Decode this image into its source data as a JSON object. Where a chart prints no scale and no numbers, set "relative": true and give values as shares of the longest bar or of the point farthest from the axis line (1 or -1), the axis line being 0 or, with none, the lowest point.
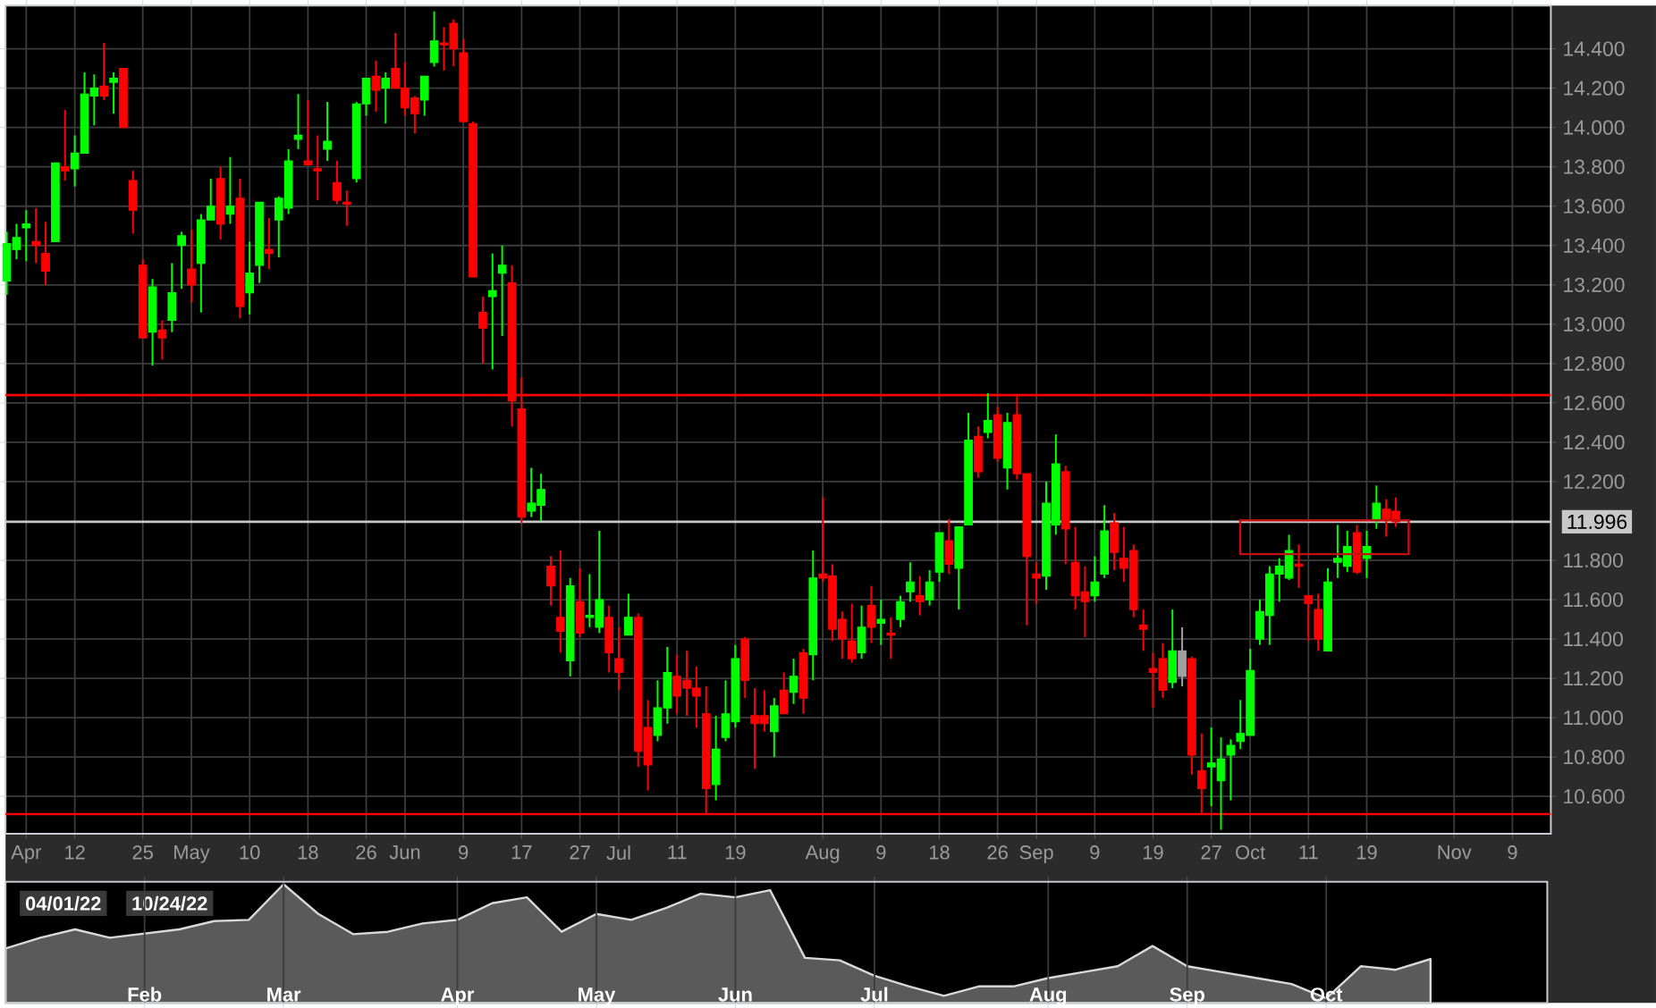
{
  "chart_data": [
    {
      "type": "candlestick",
      "categories": [
        null,
        null,
        "Apr",
        null,
        null,
        null,
        null,
        "12",
        null,
        null,
        null,
        null,
        null,
        null,
        "25",
        null,
        null,
        null,
        null,
        "May",
        null,
        null,
        null,
        null,
        null,
        "10",
        null,
        null,
        null,
        null,
        null,
        "18",
        null,
        null,
        null,
        null,
        null,
        "26",
        null,
        null,
        null,
        "Jun",
        null,
        null,
        null,
        null,
        null,
        "9",
        null,
        null,
        null,
        null,
        null,
        "17",
        null,
        null,
        null,
        null,
        null,
        "27",
        null,
        null,
        null,
        "Jul",
        null,
        null,
        null,
        null,
        null,
        "11",
        null,
        null,
        null,
        null,
        null,
        "19",
        null,
        null,
        null,
        null,
        null,
        null,
        null,
        null,
        "Aug",
        null,
        null,
        null,
        null,
        null,
        "9",
        null,
        null,
        null,
        null,
        null,
        "18",
        null,
        null,
        null,
        null,
        null,
        "26",
        null,
        null,
        null,
        "Sep",
        null,
        null,
        null,
        null,
        null,
        "9",
        null,
        null,
        null,
        null,
        null,
        "19",
        null,
        null,
        null,
        null,
        null,
        "27",
        null,
        null,
        null,
        "Oct",
        null,
        null,
        null,
        null,
        null,
        "11",
        null,
        null,
        null,
        null,
        null,
        "19",
        null,
        null,
        null,
        null,
        null,
        null,
        null,
        null,
        "Nov",
        null,
        null,
        null,
        null,
        null,
        "9",
        null,
        null,
        null
      ],
      "ohlc": [
        [
          13.22,
          13.47,
          13.15,
          13.41
        ],
        [
          13.38,
          13.51,
          13.33,
          13.44
        ],
        [
          13.49,
          13.58,
          13.32,
          13.51
        ],
        [
          13.42,
          13.59,
          13.31,
          13.4
        ],
        [
          13.36,
          13.52,
          13.2,
          13.27
        ],
        [
          13.42,
          13.82,
          13.42,
          13.82
        ],
        [
          13.8,
          14.09,
          13.73,
          13.78
        ],
        [
          13.79,
          13.96,
          13.7,
          13.87
        ],
        [
          13.87,
          14.28,
          13.87,
          14.17
        ],
        [
          14.16,
          14.27,
          14.01,
          14.2
        ],
        [
          14.21,
          14.43,
          14.14,
          14.16
        ],
        [
          14.23,
          14.28,
          14.07,
          14.25
        ],
        [
          14.3,
          14.3,
          14.0,
          14.0
        ],
        [
          13.73,
          13.78,
          13.46,
          13.58
        ],
        [
          13.3,
          13.33,
          12.93,
          12.93
        ],
        [
          12.96,
          13.23,
          12.79,
          13.19
        ],
        [
          12.97,
          13.02,
          12.82,
          12.93
        ],
        [
          13.02,
          13.31,
          12.96,
          13.16
        ],
        [
          13.4,
          13.47,
          13.18,
          13.45
        ],
        [
          13.28,
          13.48,
          13.11,
          13.2
        ],
        [
          13.31,
          13.56,
          13.06,
          13.53
        ],
        [
          13.53,
          13.74,
          13.53,
          13.6
        ],
        [
          13.74,
          13.8,
          13.43,
          13.51
        ],
        [
          13.56,
          13.85,
          13.51,
          13.6
        ],
        [
          13.64,
          13.74,
          13.03,
          13.09
        ],
        [
          13.16,
          13.42,
          13.05,
          13.26
        ],
        [
          13.3,
          13.62,
          13.21,
          13.62
        ],
        [
          13.38,
          13.54,
          13.28,
          13.36
        ],
        [
          13.53,
          13.65,
          13.34,
          13.64
        ],
        [
          13.59,
          13.89,
          13.56,
          13.83
        ],
        [
          13.94,
          14.17,
          13.89,
          13.96
        ],
        [
          13.83,
          14.14,
          13.81,
          13.81
        ],
        [
          13.79,
          13.96,
          13.63,
          13.78
        ],
        [
          13.89,
          14.13,
          13.83,
          13.93
        ],
        [
          13.72,
          13.83,
          13.61,
          13.63
        ],
        [
          13.62,
          13.68,
          13.5,
          13.61
        ],
        [
          13.74,
          14.13,
          13.72,
          14.12
        ],
        [
          14.12,
          14.25,
          14.06,
          14.25
        ],
        [
          14.26,
          14.34,
          14.08,
          14.19
        ],
        [
          14.2,
          14.28,
          14.02,
          14.25
        ],
        [
          14.3,
          14.48,
          14.2,
          14.2
        ],
        [
          14.2,
          14.33,
          14.06,
          14.1
        ],
        [
          14.15,
          14.16,
          13.97,
          14.07
        ],
        [
          14.14,
          14.26,
          14.06,
          14.26
        ],
        [
          14.33,
          14.59,
          14.31,
          14.44
        ],
        [
          14.43,
          14.51,
          14.29,
          14.42
        ],
        [
          14.53,
          14.55,
          14.31,
          14.4
        ],
        [
          14.38,
          14.45,
          14.03,
          14.03
        ],
        [
          14.02,
          14.03,
          13.24,
          13.24
        ],
        [
          13.06,
          13.14,
          12.8,
          12.98
        ],
        [
          13.14,
          13.36,
          12.77,
          13.17
        ],
        [
          13.26,
          13.4,
          12.94,
          13.3
        ],
        [
          13.21,
          13.3,
          12.48,
          12.61
        ],
        [
          12.57,
          12.73,
          11.99,
          12.02
        ],
        [
          12.05,
          12.27,
          12.02,
          12.09
        ],
        [
          12.08,
          12.24,
          12.0,
          12.16
        ],
        [
          11.77,
          11.82,
          11.57,
          11.67
        ],
        [
          11.51,
          11.85,
          11.33,
          11.44
        ],
        [
          11.29,
          11.71,
          11.21,
          11.67
        ],
        [
          11.59,
          11.76,
          11.41,
          11.43
        ],
        [
          11.51,
          11.73,
          11.46,
          11.52
        ],
        [
          11.46,
          11.95,
          11.43,
          11.6
        ],
        [
          11.51,
          11.57,
          11.23,
          11.33
        ],
        [
          11.3,
          11.46,
          11.14,
          11.23
        ],
        [
          11.42,
          11.63,
          11.42,
          11.51
        ],
        [
          11.51,
          11.53,
          10.75,
          10.83
        ],
        [
          10.95,
          11.09,
          10.63,
          10.76
        ],
        [
          10.91,
          11.19,
          10.88,
          11.05
        ],
        [
          11.05,
          11.36,
          10.97,
          11.23
        ],
        [
          11.21,
          11.32,
          11.02,
          11.11
        ],
        [
          11.19,
          11.34,
          11.01,
          11.15
        ],
        [
          11.15,
          11.26,
          10.95,
          11.11
        ],
        [
          11.02,
          11.16,
          10.51,
          10.64
        ],
        [
          10.66,
          11.01,
          10.58,
          10.84
        ],
        [
          10.9,
          11.19,
          10.88,
          11.02
        ],
        [
          10.98,
          11.37,
          10.95,
          11.3
        ],
        [
          11.4,
          11.41,
          11.1,
          11.19
        ],
        [
          11.01,
          11.15,
          10.74,
          10.97
        ],
        [
          11.01,
          11.14,
          10.93,
          10.97
        ],
        [
          10.93,
          11.1,
          10.8,
          11.06
        ],
        [
          11.14,
          11.23,
          11.02,
          11.02
        ],
        [
          11.13,
          11.3,
          11.07,
          11.21
        ],
        [
          11.33,
          11.35,
          11.02,
          11.1
        ],
        [
          11.32,
          11.85,
          11.19,
          11.71
        ],
        [
          11.73,
          12.12,
          11.69,
          11.71
        ],
        [
          11.72,
          11.78,
          11.39,
          11.45
        ],
        [
          11.5,
          11.54,
          11.3,
          11.4
        ],
        [
          11.39,
          11.58,
          11.28,
          11.3
        ],
        [
          11.33,
          11.57,
          11.3,
          11.46
        ],
        [
          11.57,
          11.67,
          11.38,
          11.46
        ],
        [
          11.48,
          11.6,
          11.37,
          11.5
        ],
        [
          11.43,
          11.51,
          11.3,
          11.42
        ],
        [
          11.5,
          11.62,
          11.46,
          11.59
        ],
        [
          11.64,
          11.79,
          11.59,
          11.69
        ],
        [
          11.62,
          11.72,
          11.52,
          11.59
        ],
        [
          11.6,
          11.75,
          11.57,
          11.69
        ],
        [
          11.74,
          11.94,
          11.69,
          11.94
        ],
        [
          11.9,
          12.01,
          11.73,
          11.78
        ],
        [
          11.76,
          11.97,
          11.55,
          11.97
        ],
        [
          11.98,
          12.55,
          11.98,
          12.41
        ],
        [
          12.43,
          12.48,
          12.22,
          12.25
        ],
        [
          12.45,
          12.65,
          12.42,
          12.51
        ],
        [
          12.54,
          12.58,
          12.3,
          12.32
        ],
        [
          12.27,
          12.55,
          12.16,
          12.5
        ],
        [
          12.54,
          12.64,
          12.21,
          12.24
        ],
        [
          12.24,
          12.24,
          11.47,
          11.82
        ],
        [
          11.73,
          11.79,
          11.58,
          11.71
        ],
        [
          11.72,
          12.2,
          11.65,
          12.09
        ],
        [
          11.98,
          12.44,
          11.93,
          12.29
        ],
        [
          12.25,
          12.28,
          11.78,
          11.96
        ],
        [
          11.79,
          11.97,
          11.55,
          11.62
        ],
        [
          11.64,
          11.77,
          11.41,
          11.59
        ],
        [
          11.62,
          11.82,
          11.59,
          11.69
        ],
        [
          11.73,
          12.08,
          11.71,
          11.95
        ],
        [
          11.99,
          12.04,
          11.75,
          11.84
        ],
        [
          11.81,
          11.97,
          11.69,
          11.76
        ],
        [
          11.85,
          11.88,
          11.51,
          11.55
        ],
        [
          11.47,
          11.55,
          11.34,
          11.45
        ],
        [
          11.25,
          11.33,
          11.05,
          11.23
        ],
        [
          11.3,
          11.38,
          11.1,
          11.14
        ],
        [
          11.18,
          11.55,
          11.15,
          11.34
        ],
        [
          11.21,
          11.46,
          11.16,
          11.34
        ],
        [
          11.3,
          11.31,
          10.71,
          10.81
        ],
        [
          10.73,
          10.92,
          10.51,
          10.64
        ],
        [
          10.75,
          10.95,
          10.55,
          10.77
        ],
        [
          10.68,
          10.9,
          10.43,
          10.79
        ],
        [
          10.81,
          10.89,
          10.58,
          10.86
        ],
        [
          10.88,
          11.09,
          10.84,
          10.92
        ],
        [
          10.91,
          11.35,
          10.91,
          11.24
        ],
        [
          11.4,
          11.6,
          11.37,
          11.54
        ],
        [
          11.52,
          11.77,
          11.37,
          11.73
        ],
        [
          11.73,
          11.81,
          11.59,
          11.77
        ],
        [
          11.71,
          11.93,
          11.7,
          11.85
        ],
        [
          11.78,
          11.88,
          11.66,
          11.77
        ],
        [
          11.62,
          11.62,
          11.39,
          11.58
        ],
        [
          11.55,
          11.63,
          11.34,
          11.4
        ],
        [
          11.34,
          11.76,
          11.34,
          11.69
        ],
        [
          11.79,
          11.98,
          11.71,
          11.81
        ],
        [
          11.77,
          11.95,
          11.74,
          11.87
        ],
        [
          11.94,
          11.98,
          11.73,
          11.74
        ],
        [
          11.81,
          11.95,
          11.71,
          11.87
        ],
        [
          12.01,
          12.18,
          11.96,
          12.09
        ],
        [
          12.06,
          12.11,
          11.92,
          12.01
        ],
        [
          12.05,
          12.12,
          11.97,
          11.996
        ],
        null,
        null,
        null,
        null,
        null,
        null,
        null,
        null,
        null,
        null,
        null,
        null,
        null,
        null,
        null
      ],
      "colors": [
        "#00ff00",
        "#00ff00",
        "#00ff00",
        "#ff0000",
        "#ff0000",
        "#00ff00",
        "#ff0000",
        "#00ff00",
        "#00ff00",
        "#00ff00",
        "#ff0000",
        "#00ff00",
        "#ff0000",
        "#ff0000",
        "#ff0000",
        "#00ff00",
        "#ff0000",
        "#00ff00",
        "#00ff00",
        "#ff0000",
        "#00ff00",
        "#00ff00",
        "#ff0000",
        "#00ff00",
        "#ff0000",
        "#00ff00",
        "#00ff00",
        "#ff0000",
        "#00ff00",
        "#00ff00",
        "#00ff00",
        "#ff0000",
        "#ff0000",
        "#00ff00",
        "#ff0000",
        "#ff0000",
        "#00ff00",
        "#00ff00",
        "#ff0000",
        "#00ff00",
        "#ff0000",
        "#ff0000",
        "#ff0000",
        "#00ff00",
        "#00ff00",
        "#ff0000",
        "#ff0000",
        "#ff0000",
        "#ff0000",
        "#ff0000",
        "#00ff00",
        "#00ff00",
        "#ff0000",
        "#ff0000",
        "#00ff00",
        "#00ff00",
        "#ff0000",
        "#ff0000",
        "#00ff00",
        "#ff0000",
        "#00ff00",
        "#00ff00",
        "#ff0000",
        "#ff0000",
        "#00ff00",
        "#ff0000",
        "#ff0000",
        "#00ff00",
        "#00ff00",
        "#ff0000",
        "#ff0000",
        "#ff0000",
        "#ff0000",
        "#00ff00",
        "#00ff00",
        "#00ff00",
        "#ff0000",
        "#ff0000",
        "#ff0000",
        "#00ff00",
        "#ff0000",
        "#00ff00",
        "#ff0000",
        "#00ff00",
        "#ff0000",
        "#ff0000",
        "#ff0000",
        "#ff0000",
        "#00ff00",
        "#ff0000",
        "#00ff00",
        "#ff0000",
        "#00ff00",
        "#00ff00",
        "#ff0000",
        "#00ff00",
        "#00ff00",
        "#ff0000",
        "#00ff00",
        "#00ff00",
        "#ff0000",
        "#00ff00",
        "#ff0000",
        "#00ff00",
        "#ff0000",
        "#ff0000",
        "#ff0000",
        "#00ff00",
        "#00ff00",
        "#ff0000",
        "#ff0000",
        "#ff0000",
        "#00ff00",
        "#00ff00",
        "#ff0000",
        "#ff0000",
        "#ff0000",
        "#ff0000",
        "#ff0000",
        "#ff0000",
        "#00ff00",
        "#a0a0a0",
        "#ff0000",
        "#ff0000",
        "#00ff00",
        "#00ff00",
        "#00ff00",
        "#00ff00",
        "#00ff00",
        "#00ff00",
        "#00ff00",
        "#00ff00",
        "#00ff00",
        "#ff0000",
        "#ff0000",
        "#ff0000",
        "#00ff00",
        "#00ff00",
        "#00ff00",
        "#ff0000",
        "#00ff00",
        "#00ff00",
        "#ff0000",
        "#ff0000",
        null,
        null,
        null,
        null,
        null,
        null,
        null,
        null,
        null,
        null,
        null,
        null,
        null,
        null,
        null
      ],
      "ylim": [
        10.41,
        14.62
      ],
      "yticks": [
        {
          "value": 10.6,
          "label": "10.600"
        },
        {
          "value": 10.8,
          "label": "10.800"
        },
        {
          "value": 11.0,
          "label": "11.000"
        },
        {
          "value": 11.2,
          "label": "11.200"
        },
        {
          "value": 11.4,
          "label": "11.400"
        },
        {
          "value": 11.6,
          "label": "11.600"
        },
        {
          "value": 11.8,
          "label": "11.800"
        },
        {
          "value": 12.2,
          "label": "12.200"
        },
        {
          "value": 12.4,
          "label": "12.400"
        },
        {
          "value": 12.6,
          "label": "12.600"
        },
        {
          "value": 12.8,
          "label": "12.800"
        },
        {
          "value": 13.0,
          "label": "13.000"
        },
        {
          "value": 13.2,
          "label": "13.200"
        },
        {
          "value": 13.4,
          "label": "13.400"
        },
        {
          "value": 13.6,
          "label": "13.600"
        },
        {
          "value": 13.8,
          "label": "13.800"
        },
        {
          "value": 14.0,
          "label": "14.000"
        },
        {
          "value": 14.2,
          "label": "14.200"
        },
        {
          "value": 14.4,
          "label": "14.400"
        }
      ],
      "grid": true,
      "ref_lines": [
        {
          "axis": "y",
          "value": 12.64,
          "color": "#ff0000"
        },
        {
          "axis": "y",
          "value": 10.51,
          "color": "#ff0000"
        },
        {
          "axis": "y",
          "value": 11.996,
          "label": "11.996",
          "color": "#c8c8c8"
        }
      ]
    },
    {
      "type": "area",
      "relative": true,
      "color": "#5a5a5a",
      "categories": [
        null,
        null,
        null,
        null,
        "Feb",
        null,
        null,
        null,
        "Mar",
        null,
        null,
        null,
        null,
        "Apr",
        null,
        null,
        null,
        "May",
        null,
        null,
        null,
        "Jun",
        null,
        null,
        null,
        "Jul",
        null,
        null,
        null,
        null,
        "Aug",
        null,
        null,
        null,
        "Sep",
        null,
        null,
        null,
        "Oct",
        null,
        null,
        null,
        null,
        null,
        null
      ],
      "values": [
        0.46,
        0.55,
        0.62,
        0.55,
        null,
        0.62,
        0.69,
        0.7,
        1.0,
        0.75,
        0.58,
        0.6,
        0.67,
        0.7,
        0.84,
        0.89,
        0.6,
        0.75,
        0.7,
        0.8,
        0.92,
        0.89,
        0.95,
        0.38,
        0.36,
        0.23,
        0.14,
        0.06,
        0.14,
        0.14,
        0.21,
        0.26,
        0.31,
        0.48,
        0.31,
        0.26,
        0.21,
        0.16,
        0.04,
        0.31,
        0.28,
        0.37,
        null,
        null,
        null
      ],
      "grid": "x",
      "tick_labels": "x",
      "annotations": [
        "04/01/22",
        "10/24/22"
      ]
    }
  ]
}
